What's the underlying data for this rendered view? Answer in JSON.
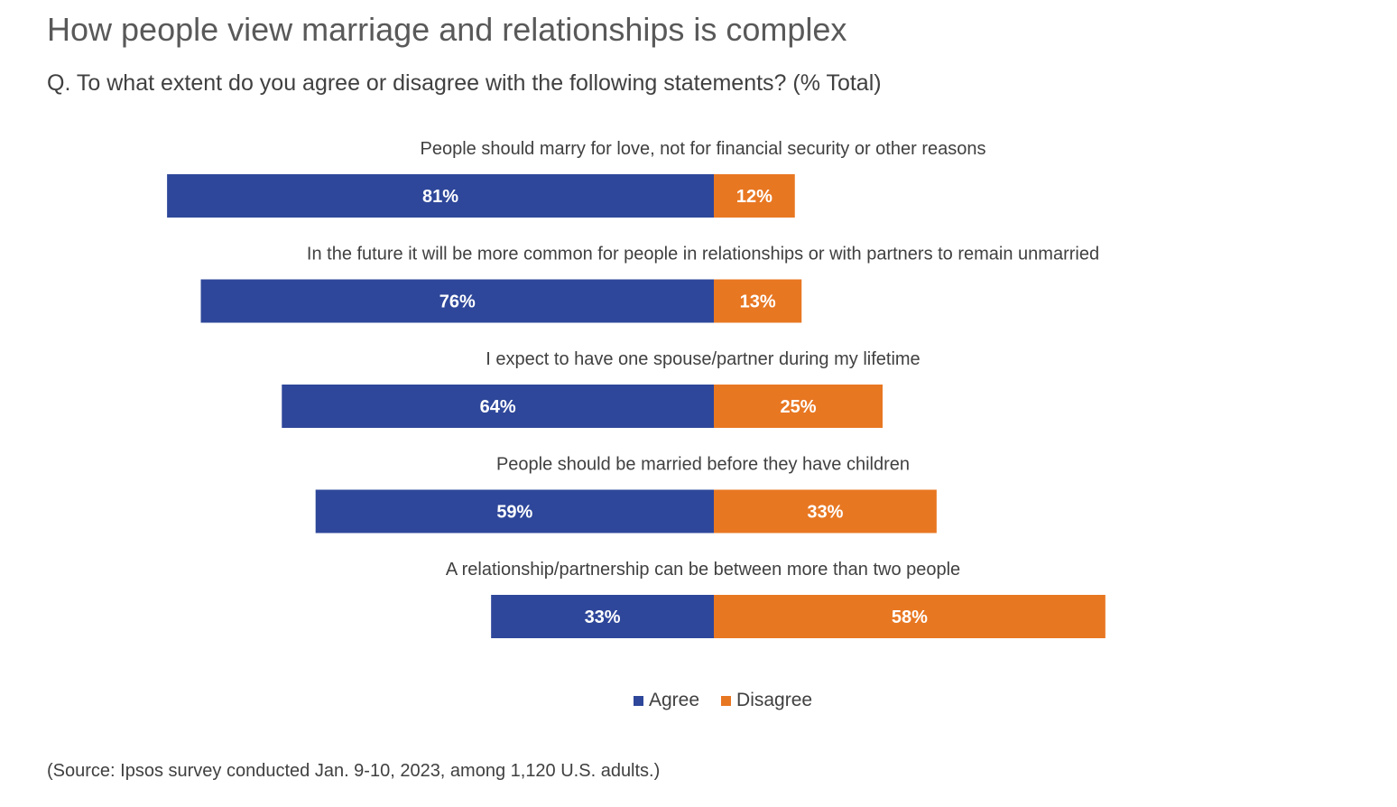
{
  "title": "How people view marriage and relationships is complex",
  "subtitle": "Q. To what extent do you agree or disagree with the following statements? (% Total)",
  "source": "(Source: Ipsos survey conducted Jan. 9-10, 2023, among 1,120 U.S. adults.)",
  "colors": {
    "agree": "#2E479A",
    "disagree": "#E87722"
  },
  "legend": {
    "agree": "Agree",
    "disagree": "Disagree"
  },
  "chart_data": {
    "type": "bar",
    "orientation": "diverging-horizontal",
    "categories": [
      "People should marry for love, not for financial security or other reasons",
      "In the future it will be more common for people in relationships or with partners to remain unmarried",
      "I expect to have one spouse/partner during my lifetime",
      "People should be married before they have children",
      "A relationship/partnership can be between more than two people"
    ],
    "series": [
      {
        "name": "Agree",
        "values": [
          81,
          76,
          64,
          59,
          33
        ],
        "labels": [
          "81%",
          "76%",
          "64%",
          "59%",
          "33%"
        ]
      },
      {
        "name": "Disagree",
        "values": [
          12,
          13,
          25,
          33,
          58
        ],
        "labels": [
          "12%",
          "13%",
          "25%",
          "33%",
          "58%"
        ]
      }
    ],
    "legend_position": "bottom",
    "grid": false
  }
}
